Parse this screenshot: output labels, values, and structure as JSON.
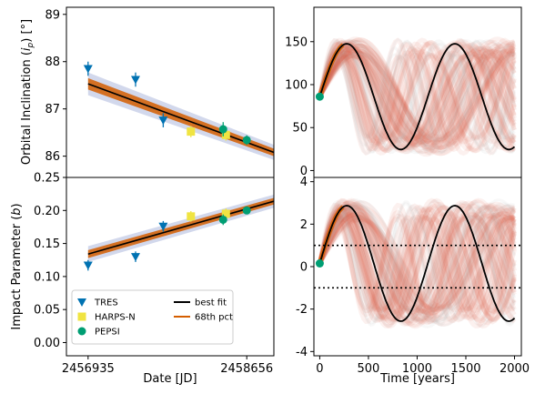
{
  "chart_data": [
    {
      "type": "scatter",
      "panel": "top-left",
      "xlabel": "",
      "ylabel": "Orbital Inclination (i_p) [°]",
      "ylabel_main": "Orbital Inclination (",
      "ylabel_sym": "i",
      "ylabel_sub": "p",
      "ylabel_end": ") [°]",
      "xlim": [
        2456700,
        2458950
      ],
      "ylim": [
        85.55,
        89.15
      ],
      "yticks": [
        86,
        87,
        88,
        89
      ],
      "series": [
        {
          "name": "TRES",
          "marker": "triangle-down",
          "color": "#0072b2",
          "points": [
            [
              2456935,
              87.85
            ],
            [
              2457450,
              87.62
            ],
            [
              2457750,
              86.76
            ]
          ],
          "err": [
            0.15,
            0.15,
            0.15
          ]
        },
        {
          "name": "HARPS-N",
          "marker": "square",
          "color": "#f0e442",
          "points": [
            [
              2458050,
              86.52
            ],
            [
              2458430,
              86.45
            ]
          ],
          "err": [
            0.12,
            0.12
          ]
        },
        {
          "name": "PEPSI",
          "marker": "circle",
          "color": "#009e73",
          "points": [
            [
              2458400,
              86.57
            ],
            [
              2458656,
              86.34
            ]
          ],
          "err": [
            0.15,
            0.1
          ]
        },
        {
          "name": "best fit",
          "kind": "line",
          "color": "#000000",
          "line": [
            [
              2456935,
              87.53
            ],
            [
              2458950,
              86.08
            ]
          ]
        },
        {
          "name": "68th pct",
          "kind": "band",
          "color": "#d55e00",
          "line": [
            [
              2456935,
              87.53
            ],
            [
              2458950,
              86.08
            ]
          ],
          "halfwidth": [
            0.12,
            0.08
          ]
        }
      ]
    },
    {
      "type": "scatter",
      "panel": "bottom-left",
      "xlabel": "Date [JD]",
      "ylabel": "Impact Parameter (b)",
      "ylabel_main": "Impact Parameter (",
      "ylabel_sym": "b",
      "ylabel_end": ")",
      "xlim": [
        2456700,
        2458950
      ],
      "ylim": [
        -0.02,
        0.25
      ],
      "yticks": [
        0.0,
        0.05,
        0.1,
        0.15,
        0.2,
        0.25
      ],
      "ytick_labels": [
        "0.00",
        "0.05",
        "0.10",
        "0.15",
        "0.20",
        "0.25"
      ],
      "xticks": [
        2456935,
        2458656
      ],
      "xtick_labels": [
        "2456935",
        "2458656"
      ],
      "series": [
        {
          "name": "TRES",
          "marker": "triangle-down",
          "color": "#0072b2",
          "points": [
            [
              2456935,
              0.117
            ],
            [
              2457450,
              0.13
            ],
            [
              2457750,
              0.176
            ]
          ],
          "err": [
            0.008,
            0.008,
            0.008
          ]
        },
        {
          "name": "HARPS-N",
          "marker": "square",
          "color": "#f0e442",
          "points": [
            [
              2458050,
              0.191
            ],
            [
              2458430,
              0.195
            ]
          ],
          "err": [
            0.008,
            0.008
          ]
        },
        {
          "name": "PEPSI",
          "marker": "circle",
          "color": "#009e73",
          "points": [
            [
              2458400,
              0.186
            ],
            [
              2458656,
              0.2
            ]
          ],
          "err": [
            0.008,
            0.005
          ]
        },
        {
          "name": "best fit",
          "kind": "line",
          "color": "#000000",
          "line": [
            [
              2456935,
              0.134
            ],
            [
              2458950,
              0.214
            ]
          ]
        },
        {
          "name": "68th pct",
          "kind": "band",
          "color": "#d55e00",
          "line": [
            [
              2456935,
              0.134
            ],
            [
              2458950,
              0.214
            ]
          ],
          "halfwidth": [
            0.006,
            0.005
          ]
        }
      ],
      "legend": {
        "placement": "lower-left",
        "entries": [
          {
            "label": "TRES",
            "marker": "triangle-down",
            "color": "#0072b2"
          },
          {
            "label": "HARPS-N",
            "marker": "square",
            "color": "#f0e442"
          },
          {
            "label": "PEPSI",
            "marker": "circle",
            "color": "#009e73"
          },
          {
            "label": "best fit",
            "marker": "line",
            "color": "#000000"
          },
          {
            "label": "68th pct",
            "marker": "line",
            "color": "#d55e00"
          }
        ]
      }
    },
    {
      "type": "line",
      "panel": "top-right",
      "xlabel": "",
      "ylabel": "",
      "xlim": [
        -60,
        2070
      ],
      "ylim": [
        -8,
        190
      ],
      "yticks": [
        0,
        50,
        100,
        150
      ],
      "best_fit": {
        "color": "#000000",
        "mean": 84,
        "amplitude": 61.5,
        "period": 1110,
        "phase0": 0.25,
        "t_min": 0,
        "t_max": 2000
      },
      "start_marker": {
        "x": 0,
        "y": 86,
        "color": "#009e73"
      },
      "ensemble": {
        "colors": [
          "#c8c8c8",
          "#e06050"
        ]
      }
    },
    {
      "type": "line",
      "panel": "bottom-right",
      "xlabel": "Time [years]",
      "ylabel": "",
      "xlim": [
        -60,
        2070
      ],
      "ylim": [
        -4.2,
        4.2
      ],
      "yticks": [
        -4,
        -2,
        0,
        2,
        4
      ],
      "xticks": [
        0,
        500,
        1000,
        1500,
        2000
      ],
      "best_fit": {
        "color": "#000000",
        "mean": 0.15,
        "amplitude": 2.72,
        "period": 1110,
        "phase0": 0.25,
        "t_min": 0,
        "t_max": 2000
      },
      "start_marker": {
        "x": 0,
        "y": 0.15,
        "color": "#009e73"
      },
      "hlines": [
        1,
        -1
      ],
      "ensemble": {
        "colors": [
          "#c8c8c8",
          "#e06050"
        ]
      }
    }
  ]
}
